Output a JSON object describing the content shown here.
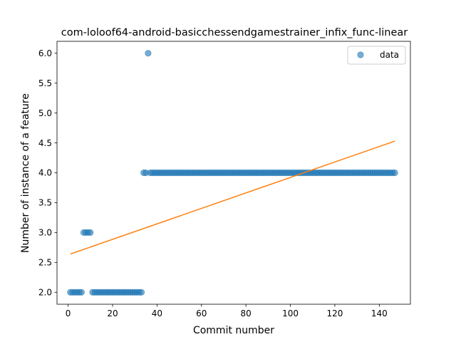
{
  "chart_data": {
    "type": "scatter",
    "title": "com-loloof64-android-basicchessendgamestrainer_infix_func-linear",
    "xlabel": "Commit number",
    "ylabel": "Number of instance of a feature",
    "xlim": [
      -5,
      154
    ],
    "ylim": [
      1.8,
      6.2
    ],
    "xticks": [
      0,
      20,
      40,
      60,
      80,
      100,
      120,
      140
    ],
    "yticks": [
      2.0,
      2.5,
      3.0,
      3.5,
      4.0,
      4.5,
      5.0,
      5.5,
      6.0
    ],
    "legend": {
      "position": "top-right",
      "entries": [
        "data"
      ]
    },
    "grid": false,
    "series": [
      {
        "name": "data",
        "kind": "scatter",
        "color": "#1f77b4",
        "points": [
          [
            1,
            2
          ],
          [
            2,
            2
          ],
          [
            3,
            2
          ],
          [
            4,
            2
          ],
          [
            5,
            2
          ],
          [
            6,
            2
          ],
          [
            7,
            3
          ],
          [
            8,
            3
          ],
          [
            9,
            3
          ],
          [
            10,
            3
          ],
          [
            11,
            2
          ],
          [
            12,
            2
          ],
          [
            13,
            2
          ],
          [
            14,
            2
          ],
          [
            15,
            2
          ],
          [
            16,
            2
          ],
          [
            17,
            2
          ],
          [
            18,
            2
          ],
          [
            19,
            2
          ],
          [
            20,
            2
          ],
          [
            21,
            2
          ],
          [
            22,
            2
          ],
          [
            23,
            2
          ],
          [
            24,
            2
          ],
          [
            25,
            2
          ],
          [
            26,
            2
          ],
          [
            27,
            2
          ],
          [
            28,
            2
          ],
          [
            29,
            2
          ],
          [
            30,
            2
          ],
          [
            31,
            2
          ],
          [
            32,
            2
          ],
          [
            33,
            2
          ],
          [
            34,
            4
          ],
          [
            35,
            4
          ],
          [
            36,
            6
          ],
          [
            37,
            4
          ],
          [
            38,
            4
          ],
          [
            39,
            4
          ],
          [
            40,
            4
          ],
          [
            41,
            4
          ],
          [
            42,
            4
          ],
          [
            43,
            4
          ],
          [
            44,
            4
          ],
          [
            45,
            4
          ],
          [
            46,
            4
          ],
          [
            47,
            4
          ],
          [
            48,
            4
          ],
          [
            49,
            4
          ],
          [
            50,
            4
          ],
          [
            51,
            4
          ],
          [
            52,
            4
          ],
          [
            53,
            4
          ],
          [
            54,
            4
          ],
          [
            55,
            4
          ],
          [
            56,
            4
          ],
          [
            57,
            4
          ],
          [
            58,
            4
          ],
          [
            59,
            4
          ],
          [
            60,
            4
          ],
          [
            61,
            4
          ],
          [
            62,
            4
          ],
          [
            63,
            4
          ],
          [
            64,
            4
          ],
          [
            65,
            4
          ],
          [
            66,
            4
          ],
          [
            67,
            4
          ],
          [
            68,
            4
          ],
          [
            69,
            4
          ],
          [
            70,
            4
          ],
          [
            71,
            4
          ],
          [
            72,
            4
          ],
          [
            73,
            4
          ],
          [
            74,
            4
          ],
          [
            75,
            4
          ],
          [
            76,
            4
          ],
          [
            77,
            4
          ],
          [
            78,
            4
          ],
          [
            79,
            4
          ],
          [
            80,
            4
          ],
          [
            81,
            4
          ],
          [
            82,
            4
          ],
          [
            83,
            4
          ],
          [
            84,
            4
          ],
          [
            85,
            4
          ],
          [
            86,
            4
          ],
          [
            87,
            4
          ],
          [
            88,
            4
          ],
          [
            89,
            4
          ],
          [
            90,
            4
          ],
          [
            91,
            4
          ],
          [
            92,
            4
          ],
          [
            93,
            4
          ],
          [
            94,
            4
          ],
          [
            95,
            4
          ],
          [
            96,
            4
          ],
          [
            97,
            4
          ],
          [
            98,
            4
          ],
          [
            99,
            4
          ],
          [
            100,
            4
          ],
          [
            101,
            4
          ],
          [
            102,
            4
          ],
          [
            103,
            4
          ],
          [
            104,
            4
          ],
          [
            105,
            4
          ],
          [
            106,
            4
          ],
          [
            107,
            4
          ],
          [
            108,
            4
          ],
          [
            109,
            4
          ],
          [
            110,
            4
          ],
          [
            111,
            4
          ],
          [
            112,
            4
          ],
          [
            113,
            4
          ],
          [
            114,
            4
          ],
          [
            115,
            4
          ],
          [
            116,
            4
          ],
          [
            117,
            4
          ],
          [
            118,
            4
          ],
          [
            119,
            4
          ],
          [
            120,
            4
          ],
          [
            121,
            4
          ],
          [
            122,
            4
          ],
          [
            123,
            4
          ],
          [
            124,
            4
          ],
          [
            125,
            4
          ],
          [
            126,
            4
          ],
          [
            127,
            4
          ],
          [
            128,
            4
          ],
          [
            129,
            4
          ],
          [
            130,
            4
          ],
          [
            131,
            4
          ],
          [
            132,
            4
          ],
          [
            133,
            4
          ],
          [
            134,
            4
          ],
          [
            135,
            4
          ],
          [
            136,
            4
          ],
          [
            137,
            4
          ],
          [
            138,
            4
          ],
          [
            139,
            4
          ],
          [
            140,
            4
          ],
          [
            141,
            4
          ],
          [
            142,
            4
          ],
          [
            143,
            4
          ],
          [
            144,
            4
          ],
          [
            145,
            4
          ],
          [
            146,
            4
          ],
          [
            147,
            4
          ]
        ]
      },
      {
        "kind": "line",
        "color": "#ff7f0e",
        "points": [
          [
            1,
            2.64
          ],
          [
            147,
            4.53
          ]
        ]
      }
    ]
  }
}
